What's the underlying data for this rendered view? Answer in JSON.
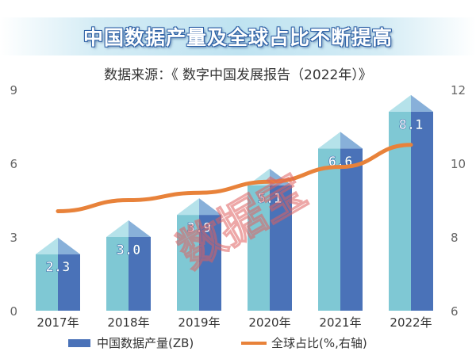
{
  "title": "中国数据产量及全球占比不断提高",
  "subtitle": "数据来源：《 数字中国发展报告（2022年）》",
  "watermark": "数据宝",
  "colors": {
    "bar_front": "#7fc8d4",
    "bar_side": "#4a72b8",
    "bar_top_light": "#b5e2ea",
    "bar_top_dark": "#88b0d9",
    "line": "#e8823a",
    "axis_text": "#666666"
  },
  "chart_data": {
    "type": "bar",
    "categories": [
      "2017年",
      "2018年",
      "2019年",
      "2020年",
      "2021年",
      "2022年"
    ],
    "series": [
      {
        "name": "中国数据产量(ZB)",
        "type": "bar",
        "axis": "left",
        "values": [
          2.3,
          3.0,
          3.9,
          5.1,
          6.6,
          8.1
        ]
      },
      {
        "name": "全球占比(%,右轴)",
        "type": "line",
        "axis": "right",
        "values": [
          8.7,
          9.0,
          9.2,
          9.5,
          9.9,
          10.5
        ]
      }
    ],
    "y_left": {
      "lim": [
        0,
        9
      ],
      "ticks": [
        "0",
        "3",
        "6",
        "9"
      ]
    },
    "y_right": {
      "lim": [
        6,
        12
      ],
      "ticks": [
        "6",
        "8",
        "10",
        "12"
      ]
    },
    "data_labels": [
      "2.3",
      "3.0",
      "3.9",
      "5.1",
      "6.6",
      "8.1"
    ],
    "legend_position": "bottom"
  }
}
